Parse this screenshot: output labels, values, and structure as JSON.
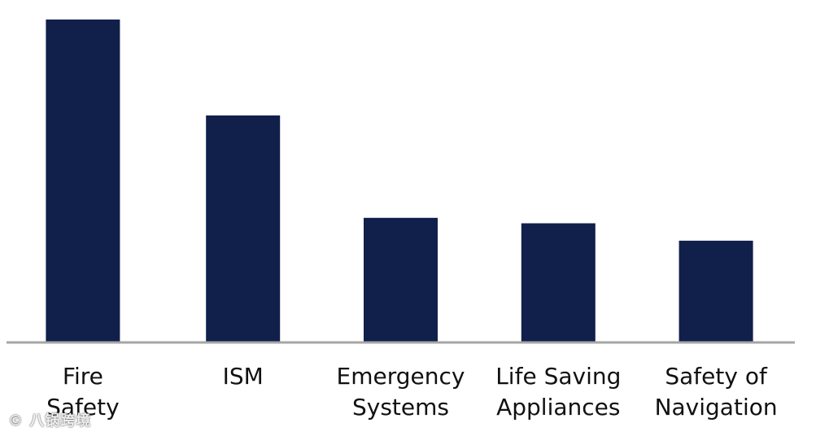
{
  "colors": {
    "bar": "#111F4B",
    "axis": "#A6A6A6",
    "text": "#111111"
  },
  "chart_data": {
    "type": "bar",
    "title": "",
    "xlabel": "",
    "ylabel": "",
    "ylim": [
      0,
      100
    ],
    "grid": false,
    "legend": "none",
    "categories": [
      [
        "Fire",
        "Safety"
      ],
      [
        "ISM"
      ],
      [
        "Emergency",
        "Systems"
      ],
      [
        "Life Saving",
        "Appliances"
      ],
      [
        "Safety of",
        "Navigation"
      ]
    ],
    "values": [
      100,
      70.3,
      38.6,
      36.9,
      31.5
    ]
  },
  "watermark": {
    "text": "© 八锅跨境"
  }
}
